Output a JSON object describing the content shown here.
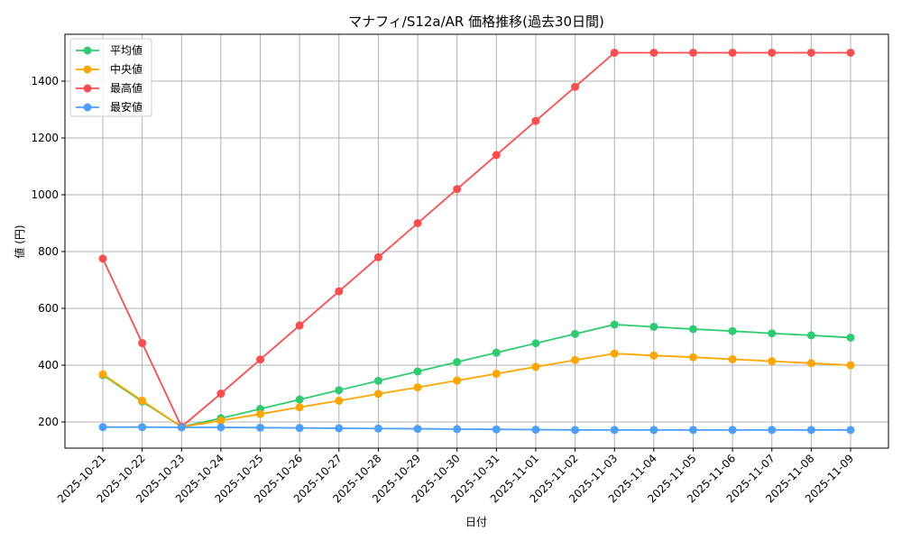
{
  "chart_data": {
    "type": "line",
    "title": "マナフィ/S12a/AR 価格推移(過去30日間)",
    "xlabel": "日付",
    "ylabel": "値 (円)",
    "ylim": [
      108,
      1565
    ],
    "yticks": [
      200,
      400,
      600,
      800,
      1000,
      1200,
      1400
    ],
    "grid": true,
    "legend_position": "top-left",
    "categories": [
      "2025-10-21",
      "2025-10-22",
      "2025-10-23",
      "2025-10-24",
      "2025-10-25",
      "2025-10-26",
      "2025-10-27",
      "2025-10-28",
      "2025-10-29",
      "2025-10-30",
      "2025-10-31",
      "2025-11-01",
      "2025-11-02",
      "2025-11-03",
      "2025-11-04",
      "2025-11-05",
      "2025-11-06",
      "2025-11-07",
      "2025-11-08",
      "2025-11-09"
    ],
    "series": [
      {
        "name": "平均値",
        "color": "#2ecc71",
        "values": [
          365,
          272,
          183,
          213,
          246,
          279,
          312,
          345,
          378,
          411,
          444,
          477,
          510,
          543,
          535,
          527,
          520,
          512,
          505,
          497
        ]
      },
      {
        "name": "中央値",
        "color": "#ffa500",
        "values": [
          368,
          275,
          183,
          205,
          228,
          252,
          275,
          299,
          322,
          346,
          370,
          394,
          418,
          441,
          434,
          428,
          421,
          414,
          407,
          400
        ]
      },
      {
        "name": "最高値",
        "color": "#ff4d4d",
        "values": [
          775,
          478,
          183,
          300,
          420,
          540,
          660,
          780,
          900,
          1020,
          1140,
          1260,
          1380,
          1500,
          1500,
          1500,
          1500,
          1500,
          1500,
          1500
        ]
      },
      {
        "name": "最安値",
        "color": "#4d9fff",
        "values": [
          182,
          182,
          181,
          181,
          180,
          179,
          178,
          177,
          176,
          175,
          174,
          173,
          172,
          172,
          172,
          172,
          172,
          172,
          172,
          172
        ]
      }
    ]
  }
}
